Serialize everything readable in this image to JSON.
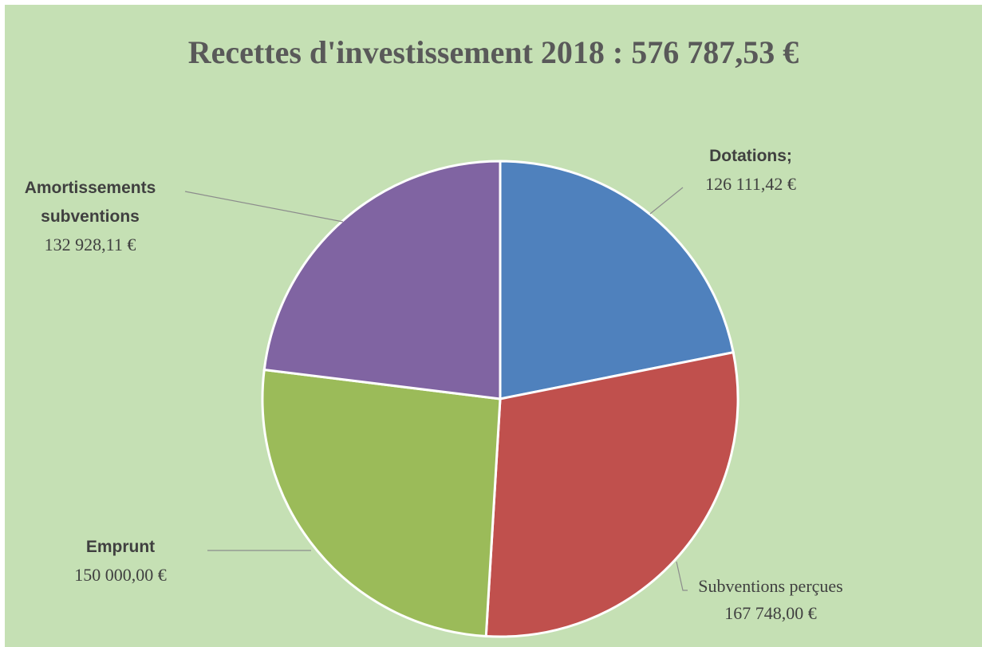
{
  "chart_data": {
    "type": "pie",
    "title": "Recettes d'investissement 2018 : 576 787,53 €",
    "categories": [
      "Dotations;",
      "Subventions perçues",
      "Emprunt",
      "Amortissements subventions"
    ],
    "values": [
      126111.42,
      167748,
      150000,
      132928.11
    ],
    "value_labels": [
      "126 111,42 €",
      "167 748,00 €",
      "150 000,00 €",
      "132 928,11 €"
    ],
    "colors": [
      "#4f81bd",
      "#c0504d",
      "#9bbb59",
      "#8064a2"
    ]
  }
}
